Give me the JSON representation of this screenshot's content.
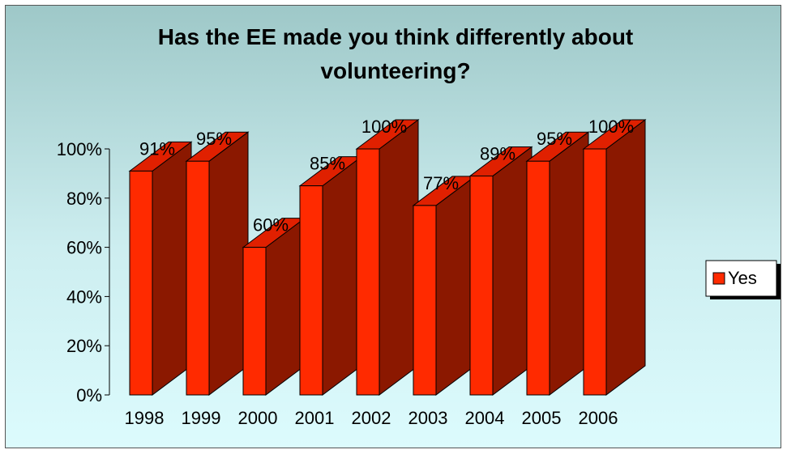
{
  "chart_data": {
    "type": "bar",
    "title_lines": [
      "Has the EE made you think differently about",
      "volunteering?"
    ],
    "categories": [
      "1998",
      "1999",
      "2000",
      "2001",
      "2002",
      "2003",
      "2004",
      "2005",
      "2006"
    ],
    "series": [
      {
        "name": "Yes",
        "values": [
          91,
          95,
          60,
          85,
          100,
          77,
          89,
          95,
          100
        ],
        "color": "#ff2a00",
        "side_color": "#8b1800",
        "top_color": "#e02000"
      }
    ],
    "data_labels": [
      "91%",
      "95%",
      "60%",
      "85%",
      "100%",
      "77%",
      "89%",
      "95%",
      "100%"
    ],
    "y_ticks": [
      "0%",
      "20%",
      "40%",
      "60%",
      "80%",
      "100%"
    ],
    "ylim": [
      0,
      100
    ],
    "legend_position": "right",
    "grid": false
  }
}
